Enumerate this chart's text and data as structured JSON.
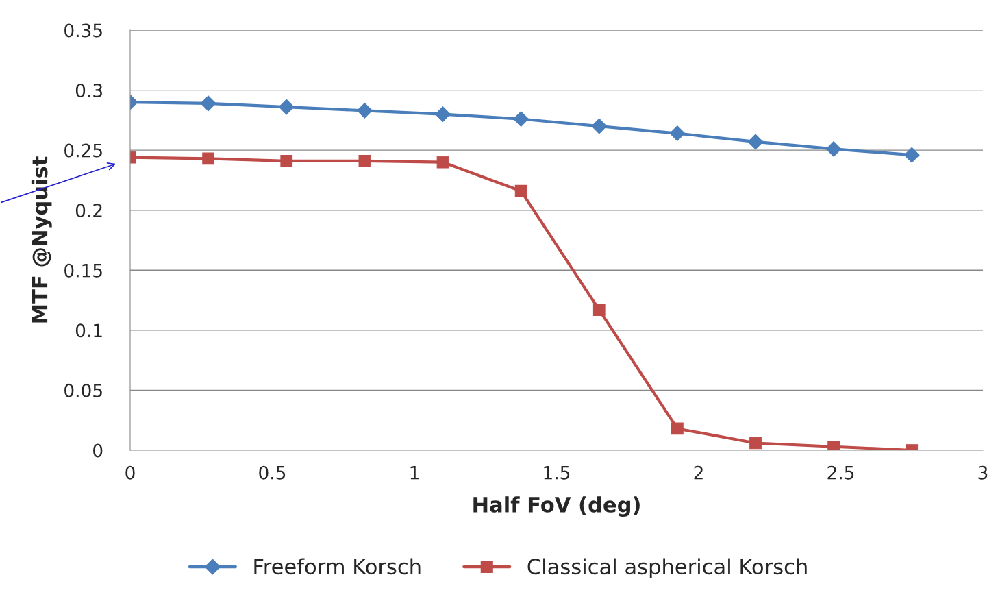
{
  "chart_data": {
    "type": "line",
    "xlabel": "Half FoV (deg)",
    "ylabel": "MTF @Nyquist",
    "x": [
      0,
      0.275,
      0.55,
      0.825,
      1.1,
      1.375,
      1.65,
      1.925,
      2.2,
      2.475,
      2.75
    ],
    "series": [
      {
        "name": "Freeform Korsch",
        "color": "#4a7ebb",
        "marker": "diamond",
        "values": [
          0.29,
          0.289,
          0.286,
          0.283,
          0.28,
          0.276,
          0.27,
          0.264,
          0.257,
          0.251,
          0.246
        ]
      },
      {
        "name": "Classical aspherical Korsch",
        "color": "#be4b48",
        "marker": "square",
        "values": [
          0.244,
          0.243,
          0.241,
          0.241,
          0.24,
          0.216,
          0.117,
          0.018,
          0.006,
          0.003,
          0
        ]
      }
    ],
    "xlim": [
      0,
      3
    ],
    "xticks": [
      0,
      0.5,
      1,
      1.5,
      2,
      2.5,
      3
    ],
    "ylim": [
      0,
      0.35
    ],
    "yticks": [
      0,
      0.05,
      0.1,
      0.15,
      0.2,
      0.25,
      0.3,
      0.35
    ],
    "grid": "y",
    "legend": "bottom",
    "line_style": "solid"
  }
}
